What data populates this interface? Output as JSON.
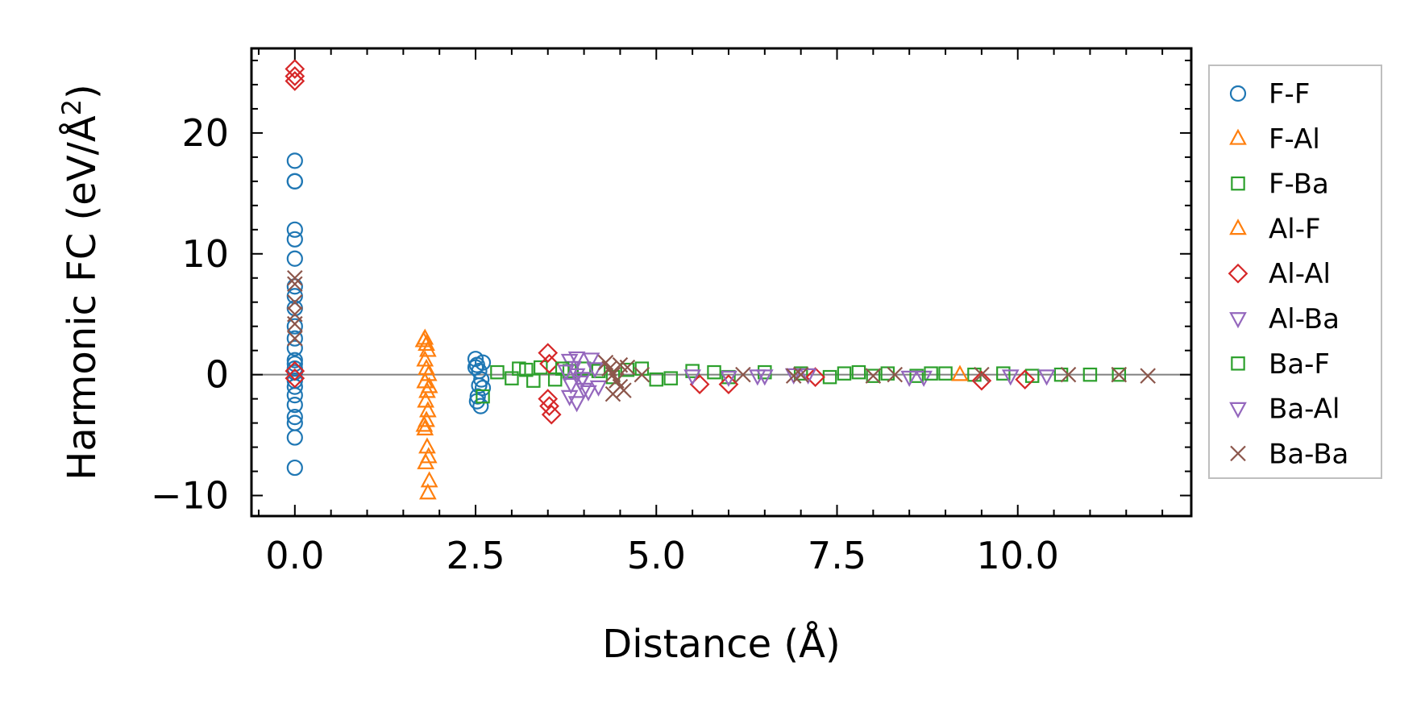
{
  "chart_data": {
    "type": "scatter",
    "title": "",
    "xlabel": "Distance (Å)",
    "ylabel_main": "Harmonic FC (eV/Å",
    "ylabel_sup": "2",
    "ylabel_close": ")",
    "xlim": [
      -0.6,
      12.4
    ],
    "ylim": [
      -11.7,
      27.0
    ],
    "xticks": [
      0.0,
      2.5,
      5.0,
      7.5,
      10.0
    ],
    "xtick_labels": [
      "0.0",
      "2.5",
      "5.0",
      "7.5",
      "10.0"
    ],
    "yticks": [
      -10,
      0,
      10,
      20
    ],
    "ytick_labels": [
      "−10",
      "0",
      "10",
      "20"
    ],
    "zero_line": true,
    "legend_position": "outside-right",
    "series": [
      {
        "name": "F-F",
        "marker": "circle",
        "color": "#1f77b4",
        "x": [
          0,
          0,
          0,
          0,
          0,
          0,
          0,
          0,
          0,
          0,
          0,
          0,
          0,
          0,
          0,
          0,
          0,
          0,
          0,
          0,
          0,
          0,
          0,
          0,
          2.5,
          2.52,
          2.55,
          2.58,
          2.6,
          2.53,
          2.57,
          2.5,
          2.55,
          2.6,
          2.52
        ],
        "y": [
          17.7,
          16.0,
          16.0,
          12.0,
          11.2,
          9.6,
          7.3,
          6.5,
          5.5,
          4.0,
          3.0,
          2.2,
          1.2,
          0.5,
          -0.5,
          -1.7,
          -2.5,
          -3.5,
          -4.0,
          -5.2,
          -7.7,
          0.9,
          -1.0,
          0.2,
          1.3,
          0.8,
          0.3,
          -0.4,
          -1.1,
          -1.8,
          -2.6,
          0.6,
          -0.9,
          1.0,
          -2.2
        ]
      },
      {
        "name": "F-Al",
        "marker": "triangle-up",
        "color": "#ff7f0e",
        "x": [
          1.8,
          1.82,
          1.84,
          1.8,
          1.82,
          1.85,
          1.8,
          1.83,
          1.81,
          1.84,
          1.82,
          1.8,
          1.83,
          1.85,
          1.81,
          1.84
        ],
        "y": [
          3.0,
          2.5,
          2.0,
          1.2,
          0.5,
          0.0,
          -0.6,
          -1.4,
          -2.2,
          -3.0,
          -3.8,
          -4.5,
          -6.0,
          -6.8,
          -7.3,
          -9.8
        ]
      },
      {
        "name": "F-Ba",
        "marker": "square",
        "color": "#2ca02c",
        "x": [
          2.6,
          2.8,
          3.0,
          3.2,
          3.4,
          3.6,
          3.8,
          4.0,
          4.4,
          4.8,
          5.2,
          5.5,
          6.0,
          6.5,
          7.0,
          7.4,
          7.8,
          8.2,
          8.6,
          9.0,
          9.4,
          9.8,
          10.2,
          10.6,
          11.0,
          11.4
        ],
        "y": [
          -1.8,
          0.2,
          -0.3,
          0.4,
          0.6,
          -0.4,
          0.3,
          0.5,
          -0.2,
          0.5,
          -0.3,
          0.3,
          -0.2,
          0.2,
          0.1,
          -0.2,
          0.2,
          0.1,
          -0.1,
          0.1,
          0.0,
          0.1,
          -0.1,
          0.0,
          0.0,
          0.0
        ]
      },
      {
        "name": "Al-F",
        "marker": "triangle-up",
        "color": "#ff7f0e",
        "x": [
          1.78,
          1.86,
          1.79,
          1.86,
          9.2
        ],
        "y": [
          2.8,
          -1.0,
          -4.2,
          -8.8,
          0.0
        ]
      },
      {
        "name": "Al-Al",
        "marker": "diamond",
        "color": "#d62728",
        "x": [
          0,
          0,
          0,
          0,
          0,
          3.5,
          3.52,
          3.5,
          3.52,
          3.55,
          5.6,
          6.0,
          7.2,
          9.5,
          10.1
        ],
        "y": [
          25.3,
          24.7,
          24.3,
          0.3,
          -0.3,
          1.8,
          0.9,
          -2.0,
          -2.6,
          -3.3,
          -0.8,
          -0.8,
          -0.2,
          -0.5,
          -0.4
        ]
      },
      {
        "name": "Al-Ba",
        "marker": "triangle-down",
        "color": "#9467bd",
        "x": [
          3.8,
          3.85,
          3.9,
          3.95,
          4.0,
          3.8,
          3.9,
          4.1,
          4.2,
          5.5,
          6.0,
          6.5,
          7.1,
          8.5,
          8.7,
          10.4
        ],
        "y": [
          1.2,
          0.6,
          0.0,
          -0.6,
          -1.2,
          -1.8,
          -2.3,
          1.3,
          -1.0,
          -0.1,
          -0.2,
          -0.1,
          0.0,
          -0.2,
          -0.2,
          -0.1
        ]
      },
      {
        "name": "Ba-F",
        "marker": "square",
        "color": "#2ca02c",
        "x": [
          3.1,
          3.3,
          3.7,
          4.2,
          4.6,
          5.0,
          5.8,
          7.6,
          8.0,
          8.8
        ],
        "y": [
          0.5,
          -0.5,
          0.5,
          0.3,
          0.4,
          -0.4,
          0.2,
          0.1,
          -0.1,
          0.1
        ]
      },
      {
        "name": "Ba-Al",
        "marker": "triangle-down",
        "color": "#9467bd",
        "x": [
          3.75,
          3.82,
          3.9,
          3.98,
          4.06,
          4.15,
          6.4,
          6.9,
          9.9
        ],
        "y": [
          0.3,
          -0.8,
          1.4,
          -0.3,
          -1.4,
          0.5,
          -0.1,
          0.0,
          -0.1
        ]
      },
      {
        "name": "Ba-Ba",
        "marker": "x",
        "color": "#8c564b",
        "x": [
          0,
          0,
          0,
          0,
          0,
          0,
          4.3,
          4.35,
          4.4,
          4.45,
          4.5,
          4.55,
          4.6,
          4.4,
          4.5,
          4.8,
          6.2,
          6.9,
          7.0,
          8.0,
          8.3,
          9.5,
          10.7,
          11.4,
          11.8
        ],
        "y": [
          8.0,
          7.5,
          6.0,
          5.0,
          4.2,
          3.0,
          1.0,
          0.5,
          0.0,
          -0.5,
          -1.0,
          -1.3,
          0.6,
          -1.6,
          0.8,
          0.0,
          0.0,
          -0.1,
          0.0,
          -0.1,
          0.0,
          0.0,
          0.0,
          0.0,
          -0.1
        ]
      }
    ]
  }
}
